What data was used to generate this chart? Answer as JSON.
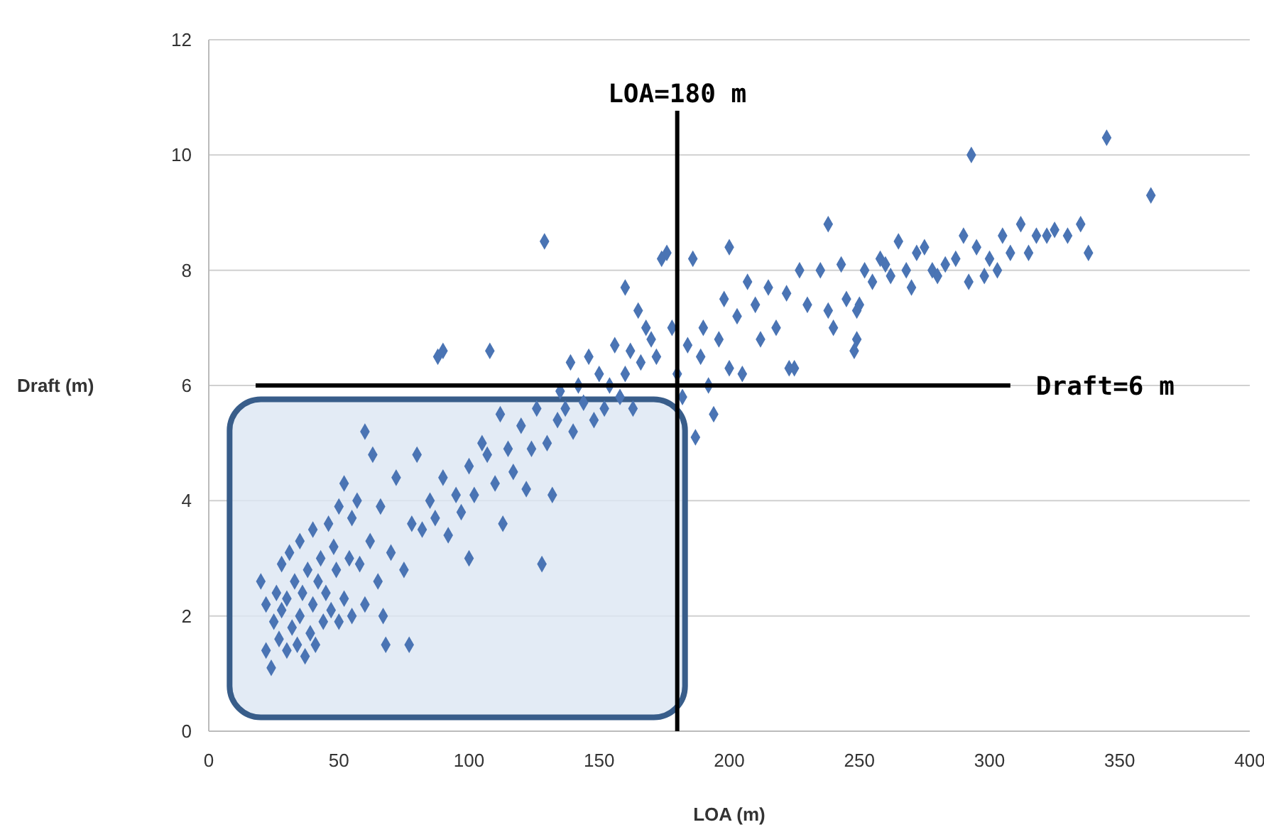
{
  "chart_data": {
    "type": "scatter",
    "xlabel": "LOA (m)",
    "ylabel": "Draft (m)",
    "xlim": [
      0,
      400
    ],
    "xticks": [
      0,
      50,
      100,
      150,
      200,
      250,
      300,
      350,
      400
    ],
    "ylim": [
      0,
      12
    ],
    "yticks": [
      0,
      2,
      4,
      6,
      8,
      10,
      12
    ],
    "grid": "y",
    "marker": "diamond",
    "bands": [
      {
        "axis": "x",
        "from": 8,
        "to": 183,
        "color": "#dce6f2"
      }
    ],
    "ref_lines": [
      {
        "axis": "x",
        "value": 180,
        "label": "LOA=180 m",
        "color": "#000000"
      },
      {
        "axis": "y",
        "value": 6,
        "label": "Draft=6 m",
        "color": "#000000"
      }
    ],
    "series": [
      {
        "color": "#4a74b4",
        "x": [
          20,
          22,
          22,
          24,
          25,
          26,
          27,
          28,
          28,
          30,
          30,
          31,
          32,
          33,
          34,
          35,
          35,
          36,
          37,
          38,
          39,
          40,
          40,
          41,
          42,
          43,
          44,
          45,
          46,
          47,
          48,
          49,
          50,
          50,
          52,
          52,
          54,
          55,
          55,
          57,
          58,
          60,
          60,
          62,
          63,
          65,
          66,
          67,
          68,
          70,
          72,
          75,
          77,
          78,
          80,
          82,
          85,
          87,
          88,
          90,
          90,
          92,
          95,
          97,
          100,
          100,
          102,
          105,
          107,
          108,
          110,
          112,
          113,
          115,
          117,
          120,
          122,
          124,
          126,
          128,
          129,
          130,
          132,
          134,
          135,
          137,
          139,
          140,
          142,
          144,
          146,
          148,
          150,
          152,
          154,
          156,
          158,
          160,
          160,
          162,
          163,
          165,
          166,
          168,
          170,
          172,
          174,
          176,
          178,
          180,
          182,
          184,
          186,
          187,
          189,
          190,
          192,
          194,
          196,
          198,
          200,
          200,
          203,
          205,
          207,
          210,
          212,
          215,
          218,
          222,
          223,
          225,
          227,
          230,
          235,
          238,
          238,
          240,
          243,
          245,
          248,
          249,
          249,
          250,
          252,
          255,
          258,
          260,
          262,
          265,
          268,
          270,
          272,
          275,
          278,
          280,
          283,
          287,
          290,
          292,
          293,
          295,
          298,
          300,
          303,
          305,
          308,
          312,
          315,
          318,
          322,
          325,
          330,
          335,
          338,
          345,
          362
        ],
        "values": [
          2.6,
          2.2,
          1.4,
          1.1,
          1.9,
          2.4,
          1.6,
          2.1,
          2.9,
          1.4,
          2.3,
          3.1,
          1.8,
          2.6,
          1.5,
          2.0,
          3.3,
          2.4,
          1.3,
          2.8,
          1.7,
          2.2,
          3.5,
          1.5,
          2.6,
          3.0,
          1.9,
          2.4,
          3.6,
          2.1,
          3.2,
          2.8,
          3.9,
          1.9,
          4.3,
          2.3,
          3.0,
          3.7,
          2.0,
          4.0,
          2.9,
          5.2,
          2.2,
          3.3,
          4.8,
          2.6,
          3.9,
          2.0,
          1.5,
          3.1,
          4.4,
          2.8,
          1.5,
          3.6,
          4.8,
          3.5,
          4.0,
          3.7,
          6.5,
          6.6,
          4.4,
          3.4,
          4.1,
          3.8,
          3.0,
          4.6,
          4.1,
          5.0,
          4.8,
          6.6,
          4.3,
          5.5,
          3.6,
          4.9,
          4.5,
          5.3,
          4.2,
          4.9,
          5.6,
          2.9,
          8.5,
          5.0,
          4.1,
          5.4,
          5.9,
          5.6,
          6.4,
          5.2,
          6.0,
          5.7,
          6.5,
          5.4,
          6.2,
          5.6,
          6.0,
          6.7,
          5.8,
          6.2,
          7.7,
          6.6,
          5.6,
          7.3,
          6.4,
          7.0,
          6.8,
          6.5,
          8.2,
          8.3,
          7.0,
          6.2,
          5.8,
          6.7,
          8.2,
          5.1,
          6.5,
          7.0,
          6.0,
          5.5,
          6.8,
          7.5,
          8.4,
          6.3,
          7.2,
          6.2,
          7.8,
          7.4,
          6.8,
          7.7,
          7.0,
          7.6,
          6.3,
          6.3,
          8.0,
          7.4,
          8.0,
          7.3,
          8.8,
          7.0,
          8.1,
          7.5,
          6.6,
          6.8,
          7.3,
          7.4,
          8.0,
          7.8,
          8.2,
          8.1,
          7.9,
          8.5,
          8.0,
          7.7,
          8.3,
          8.4,
          8.0,
          7.9,
          8.1,
          8.2,
          8.6,
          7.8,
          10.0,
          8.4,
          7.9,
          8.2,
          8.0,
          8.6,
          8.3,
          8.8,
          8.3,
          8.6,
          8.6,
          8.7,
          8.6,
          8.8,
          8.3,
          10.3,
          9.3
        ]
      }
    ]
  }
}
